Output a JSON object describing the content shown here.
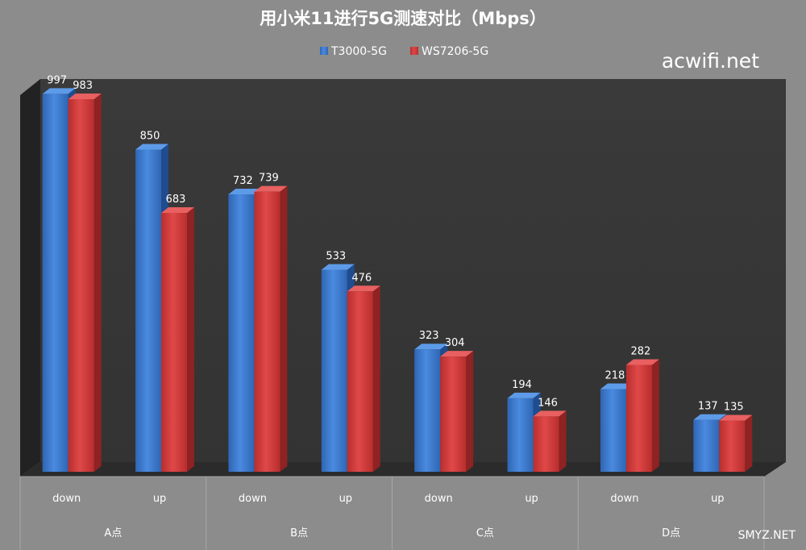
{
  "chart_data": {
    "type": "bar",
    "title": "用小米11进行5G测速对比（Mbps）",
    "categories": [
      "down",
      "up",
      "down",
      "up",
      "down",
      "up",
      "down",
      "up"
    ],
    "groups": [
      "A点",
      "B点",
      "C点",
      "D点"
    ],
    "series": [
      {
        "name": "T3000-5G",
        "color": "#3a78c8",
        "values": [
          997,
          850,
          732,
          533,
          323,
          194,
          218,
          137
        ]
      },
      {
        "name": "WS7206-5G",
        "color": "#d23a3a",
        "values": [
          983,
          683,
          739,
          476,
          304,
          146,
          282,
          135
        ]
      }
    ],
    "ylim": [
      0,
      1000
    ],
    "grid": false,
    "legend_position": "top-center",
    "bar_style": "3d"
  },
  "watermark": "acwifi.net",
  "watermark_corner": "SMYZ.NET"
}
